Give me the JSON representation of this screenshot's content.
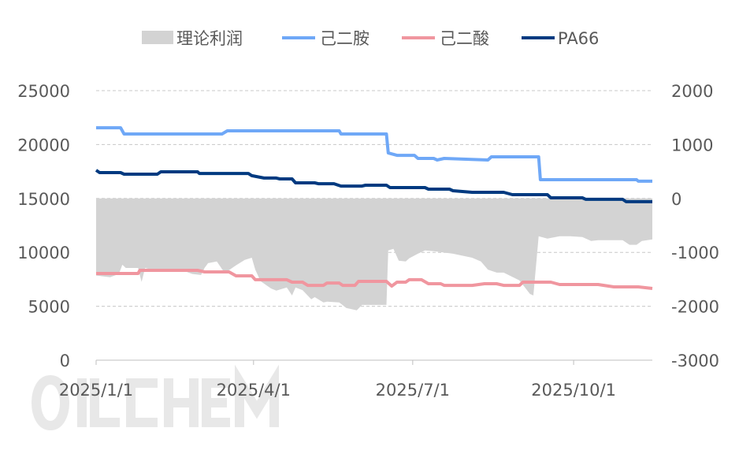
{
  "watermark": "OILCHEM",
  "chart_data": {
    "type": "line+area",
    "title": "",
    "legend_position": "top",
    "grid": true,
    "xlim": [
      "2025-01-01",
      "2025-11-15"
    ],
    "x_ticks": [
      {
        "date": "2025-01-01",
        "label": "2025/1/1"
      },
      {
        "date": "2025-04-01",
        "label": "2025/4/1"
      },
      {
        "date": "2025-07-01",
        "label": "2025/7/1"
      },
      {
        "date": "2025-10-01",
        "label": "2025/10/1"
      }
    ],
    "y_left": {
      "lim": [
        0,
        25000
      ],
      "ticks": [
        "0",
        "5000",
        "10000",
        "15000",
        "20000",
        "25000"
      ]
    },
    "y_right": {
      "lim": [
        -3000,
        2000
      ],
      "ticks": [
        "-3000",
        "-2000",
        "-1000",
        "0",
        "1000",
        "2000"
      ]
    },
    "series": [
      {
        "name": "理论利润",
        "type": "area",
        "axis": "right",
        "color": "#D3D3D3",
        "points": [
          [
            "2025-01-01",
            -1430
          ],
          [
            "2025-01-09",
            -1460
          ],
          [
            "2025-01-14",
            -1400
          ],
          [
            "2025-01-16",
            -1230
          ],
          [
            "2025-01-18",
            -1290
          ],
          [
            "2025-01-25",
            -1290
          ],
          [
            "2025-01-27",
            -1550
          ],
          [
            "2025-01-29",
            -1290
          ],
          [
            "2025-02-05",
            -1350
          ],
          [
            "2025-02-19",
            -1330
          ],
          [
            "2025-02-25",
            -1400
          ],
          [
            "2025-03-02",
            -1420
          ],
          [
            "2025-03-04",
            -1290
          ],
          [
            "2025-03-06",
            -1200
          ],
          [
            "2025-03-11",
            -1170
          ],
          [
            "2025-03-15",
            -1360
          ],
          [
            "2025-03-18",
            -1330
          ],
          [
            "2025-03-22",
            -1240
          ],
          [
            "2025-03-27",
            -1140
          ],
          [
            "2025-03-31",
            -1100
          ],
          [
            "2025-04-02",
            -1320
          ],
          [
            "2025-04-05",
            -1535
          ],
          [
            "2025-04-11",
            -1670
          ],
          [
            "2025-04-14",
            -1710
          ],
          [
            "2025-04-20",
            -1650
          ],
          [
            "2025-04-23",
            -1800
          ],
          [
            "2025-04-25",
            -1650
          ],
          [
            "2025-04-29",
            -1700
          ],
          [
            "2025-05-04",
            -1870
          ],
          [
            "2025-05-06",
            -1830
          ],
          [
            "2025-05-11",
            -1930
          ],
          [
            "2025-05-13",
            -1915
          ],
          [
            "2025-05-20",
            -1930
          ],
          [
            "2025-05-24",
            -2030
          ],
          [
            "2025-05-30",
            -2075
          ],
          [
            "2025-06-02",
            -1975
          ],
          [
            "2025-06-09",
            -1975
          ],
          [
            "2025-06-16",
            -1975
          ],
          [
            "2025-06-17",
            -965
          ],
          [
            "2025-06-20",
            -935
          ],
          [
            "2025-06-23",
            -1155
          ],
          [
            "2025-06-27",
            -1170
          ],
          [
            "2025-06-29",
            -1110
          ],
          [
            "2025-07-04",
            -1025
          ],
          [
            "2025-07-08",
            -965
          ],
          [
            "2025-07-13",
            -980
          ],
          [
            "2025-07-17",
            -995
          ],
          [
            "2025-07-24",
            -1025
          ],
          [
            "2025-08-04",
            -1100
          ],
          [
            "2025-08-09",
            -1170
          ],
          [
            "2025-08-13",
            -1320
          ],
          [
            "2025-08-18",
            -1375
          ],
          [
            "2025-08-22",
            -1375
          ],
          [
            "2025-08-31",
            -1520
          ],
          [
            "2025-09-06",
            -1770
          ],
          [
            "2025-09-08",
            -1800
          ],
          [
            "2025-09-11",
            -700
          ],
          [
            "2025-09-16",
            -745
          ],
          [
            "2025-09-23",
            -700
          ],
          [
            "2025-09-29",
            -700
          ],
          [
            "2025-10-06",
            -715
          ],
          [
            "2025-10-11",
            -790
          ],
          [
            "2025-10-15",
            -775
          ],
          [
            "2025-10-29",
            -775
          ],
          [
            "2025-11-02",
            -860
          ],
          [
            "2025-11-06",
            -860
          ],
          [
            "2025-11-09",
            -790
          ],
          [
            "2025-11-15",
            -760
          ]
        ]
      },
      {
        "name": "己二胺",
        "type": "line",
        "axis": "left",
        "color": "#6FA8F7",
        "points": [
          [
            "2025-01-01",
            21560
          ],
          [
            "2025-01-15",
            21560
          ],
          [
            "2025-01-17",
            20980
          ],
          [
            "2025-03-14",
            20980
          ],
          [
            "2025-03-17",
            21270
          ],
          [
            "2025-05-20",
            21270
          ],
          [
            "2025-05-21",
            20980
          ],
          [
            "2025-06-16",
            20980
          ],
          [
            "2025-06-17",
            19220
          ],
          [
            "2025-06-22",
            19000
          ],
          [
            "2025-07-02",
            19000
          ],
          [
            "2025-07-04",
            18710
          ],
          [
            "2025-07-13",
            18710
          ],
          [
            "2025-07-15",
            18570
          ],
          [
            "2025-07-19",
            18710
          ],
          [
            "2025-08-13",
            18570
          ],
          [
            "2025-08-15",
            18860
          ],
          [
            "2025-09-11",
            18860
          ],
          [
            "2025-09-12",
            16740
          ],
          [
            "2025-11-06",
            16740
          ],
          [
            "2025-11-07",
            16600
          ],
          [
            "2025-11-15",
            16600
          ]
        ]
      },
      {
        "name": "己二酸",
        "type": "line",
        "axis": "left",
        "color": "#F0969F",
        "points": [
          [
            "2025-01-01",
            8040
          ],
          [
            "2025-01-25",
            8040
          ],
          [
            "2025-01-26",
            8330
          ],
          [
            "2025-02-28",
            8330
          ],
          [
            "2025-03-04",
            8190
          ],
          [
            "2025-03-18",
            8190
          ],
          [
            "2025-03-22",
            7820
          ],
          [
            "2025-03-31",
            7820
          ],
          [
            "2025-04-02",
            7460
          ],
          [
            "2025-04-20",
            7460
          ],
          [
            "2025-04-23",
            7240
          ],
          [
            "2025-04-29",
            7240
          ],
          [
            "2025-05-02",
            6940
          ],
          [
            "2025-05-11",
            6940
          ],
          [
            "2025-05-13",
            7160
          ],
          [
            "2025-05-20",
            7160
          ],
          [
            "2025-05-22",
            6940
          ],
          [
            "2025-05-29",
            6940
          ],
          [
            "2025-05-31",
            7310
          ],
          [
            "2025-06-16",
            7310
          ],
          [
            "2025-06-19",
            6870
          ],
          [
            "2025-06-22",
            7240
          ],
          [
            "2025-06-27",
            7240
          ],
          [
            "2025-06-29",
            7460
          ],
          [
            "2025-07-06",
            7460
          ],
          [
            "2025-07-10",
            7090
          ],
          [
            "2025-07-17",
            7090
          ],
          [
            "2025-07-19",
            6940
          ],
          [
            "2025-08-04",
            6940
          ],
          [
            "2025-08-11",
            7090
          ],
          [
            "2025-08-18",
            7090
          ],
          [
            "2025-08-22",
            6940
          ],
          [
            "2025-08-31",
            6940
          ],
          [
            "2025-09-02",
            7240
          ],
          [
            "2025-09-18",
            7240
          ],
          [
            "2025-09-23",
            7020
          ],
          [
            "2025-10-15",
            7020
          ],
          [
            "2025-10-24",
            6800
          ],
          [
            "2025-11-07",
            6800
          ],
          [
            "2025-11-15",
            6650
          ]
        ]
      },
      {
        "name": "PA66",
        "type": "line",
        "axis": "left",
        "color": "#003A80",
        "points": [
          [
            "2025-01-01",
            17620
          ],
          [
            "2025-01-03",
            17400
          ],
          [
            "2025-01-15",
            17400
          ],
          [
            "2025-01-17",
            17250
          ],
          [
            "2025-02-05",
            17250
          ],
          [
            "2025-02-07",
            17470
          ],
          [
            "2025-02-28",
            17470
          ],
          [
            "2025-03-01",
            17320
          ],
          [
            "2025-03-29",
            17320
          ],
          [
            "2025-03-31",
            17110
          ],
          [
            "2025-04-07",
            16890
          ],
          [
            "2025-04-14",
            16890
          ],
          [
            "2025-04-16",
            16810
          ],
          [
            "2025-04-23",
            16810
          ],
          [
            "2025-04-25",
            16450
          ],
          [
            "2025-05-06",
            16450
          ],
          [
            "2025-05-08",
            16370
          ],
          [
            "2025-05-17",
            16370
          ],
          [
            "2025-05-21",
            16150
          ],
          [
            "2025-06-02",
            16150
          ],
          [
            "2025-06-04",
            16230
          ],
          [
            "2025-06-16",
            16230
          ],
          [
            "2025-06-18",
            16010
          ],
          [
            "2025-07-08",
            16010
          ],
          [
            "2025-07-10",
            15860
          ],
          [
            "2025-07-22",
            15860
          ],
          [
            "2025-07-24",
            15720
          ],
          [
            "2025-08-04",
            15570
          ],
          [
            "2025-08-22",
            15570
          ],
          [
            "2025-08-27",
            15350
          ],
          [
            "2025-09-16",
            15350
          ],
          [
            "2025-09-18",
            15060
          ],
          [
            "2025-10-06",
            15060
          ],
          [
            "2025-10-08",
            14920
          ],
          [
            "2025-10-29",
            14920
          ],
          [
            "2025-10-31",
            14700
          ],
          [
            "2025-11-15",
            14700
          ]
        ]
      }
    ]
  }
}
